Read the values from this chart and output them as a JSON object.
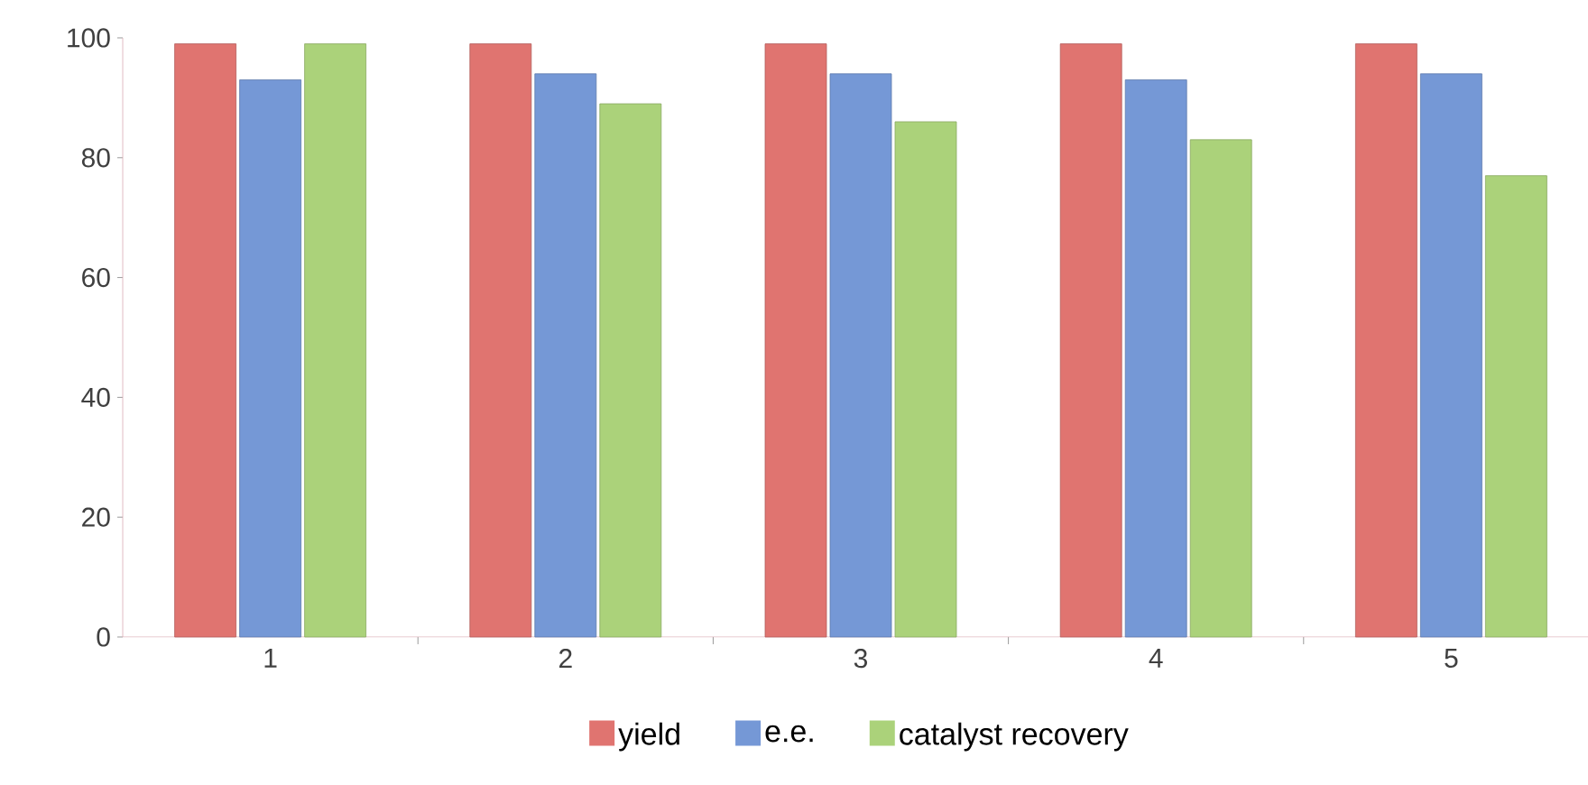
{
  "chart_data": {
    "type": "bar",
    "categories": [
      "1",
      "2",
      "3",
      "4",
      "5"
    ],
    "series": [
      {
        "name": "yield",
        "color": "#e07470",
        "values": [
          99,
          99,
          99,
          99,
          99
        ]
      },
      {
        "name": "e.e.",
        "color": "#7598d6",
        "values": [
          93,
          94,
          94,
          93,
          94
        ]
      },
      {
        "name": "catalyst recovery",
        "color": "#abd27a",
        "values": [
          99,
          89,
          86,
          83,
          77
        ]
      }
    ],
    "ylim": [
      0,
      100
    ],
    "yticks": [
      0,
      20,
      40,
      60,
      80,
      100
    ],
    "grid": false,
    "legend": "bottom"
  }
}
